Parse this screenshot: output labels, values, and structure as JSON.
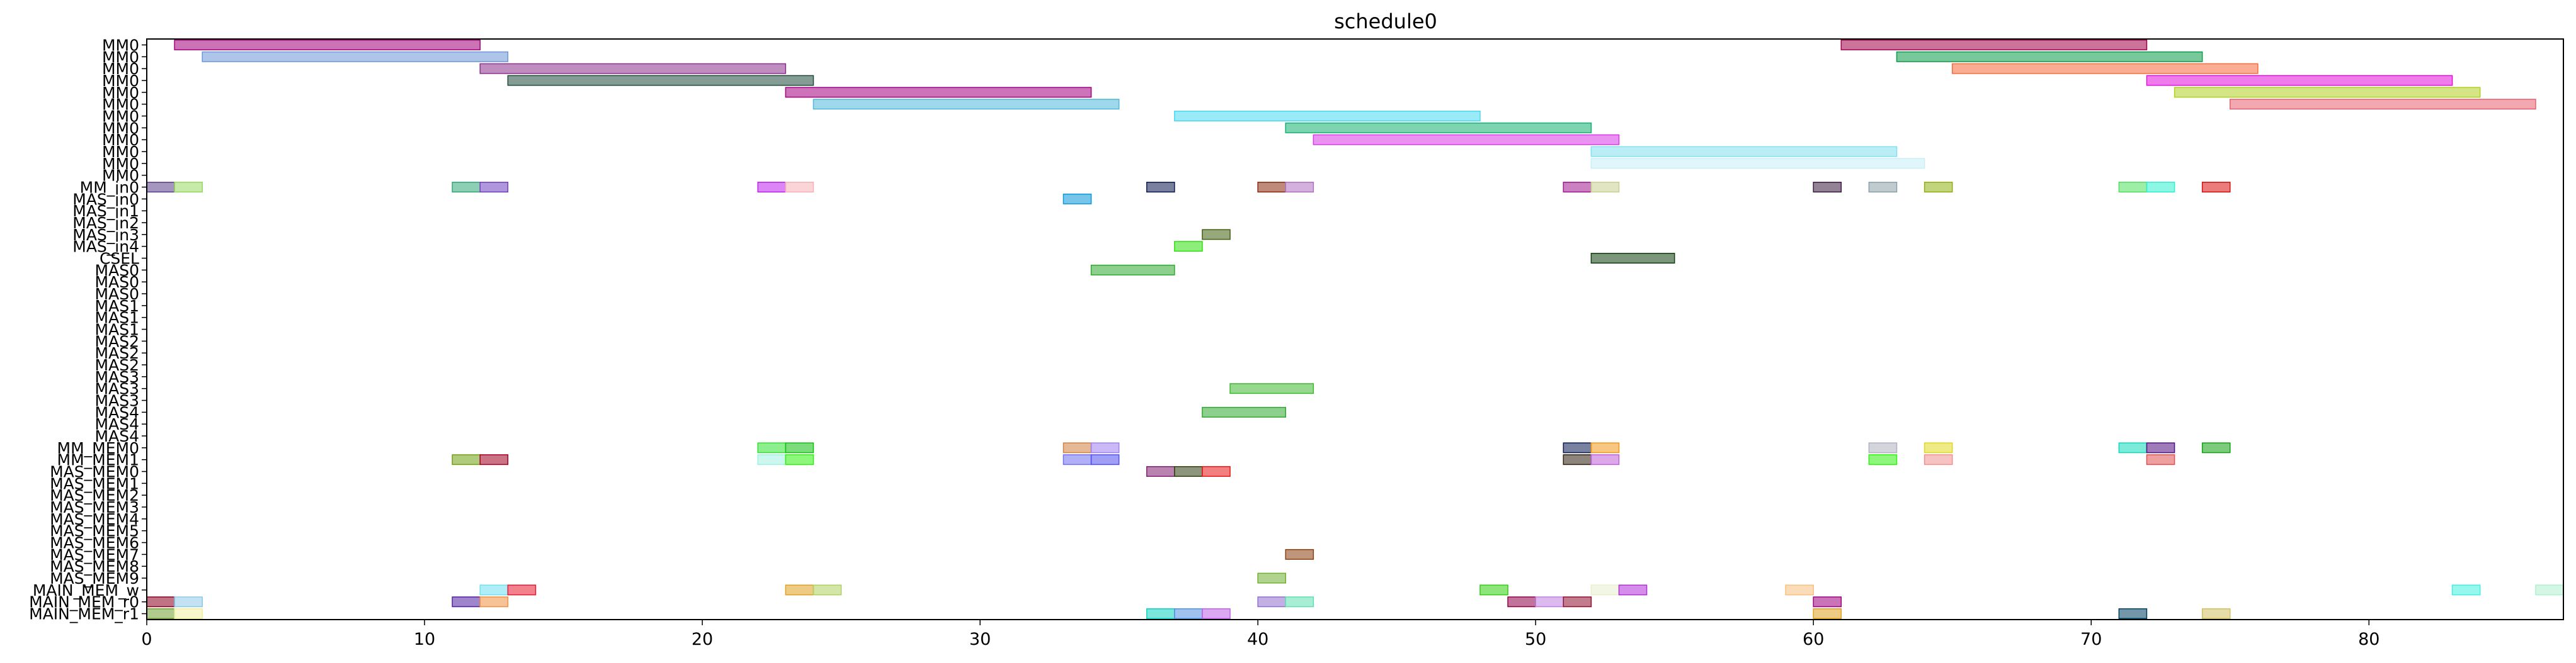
{
  "chart_data": {
    "type": "gantt",
    "title": "schedule0",
    "xlabel": "",
    "ylabel": "",
    "xlim": [
      0,
      87
    ],
    "xticks": [
      0,
      10,
      20,
      30,
      40,
      50,
      60,
      70,
      80
    ],
    "grid": false,
    "lanes": [
      "MM0",
      "MM0",
      "MM0",
      "MM0",
      "MM0",
      "MM0",
      "MM0",
      "MM0",
      "MM0",
      "MM0",
      "MM0",
      "MM0",
      "MM_in0",
      "MAS_in0",
      "MAS_in1",
      "MAS_in2",
      "MAS_in3",
      "MAS_in4",
      "CSEL",
      "MAS0",
      "MAS0",
      "MAS0",
      "MAS1",
      "MAS1",
      "MAS1",
      "MAS2",
      "MAS2",
      "MAS2",
      "MAS3",
      "MAS3",
      "MAS3",
      "MAS4",
      "MAS4",
      "MAS4",
      "MM_MEM0",
      "MM_MEM1",
      "MAS_MEM0",
      "MAS_MEM1",
      "MAS_MEM2",
      "MAS_MEM3",
      "MAS_MEM4",
      "MAS_MEM5",
      "MAS_MEM6",
      "MAS_MEM7",
      "MAS_MEM8",
      "MAS_MEM9",
      "MAIN_MEM_w",
      "MAIN_MEM_r0",
      "MAIN_MEM_r1"
    ],
    "tasks": [
      {
        "lane": 0,
        "start": 1,
        "end": 12,
        "color": "#a3007a"
      },
      {
        "lane": 0,
        "start": 61,
        "end": 72,
        "color": "#a3004a"
      },
      {
        "lane": 1,
        "start": 2,
        "end": 13,
        "color": "#6b95d8"
      },
      {
        "lane": 1,
        "start": 63,
        "end": 74,
        "color": "#0a9a48"
      },
      {
        "lane": 2,
        "start": 12,
        "end": 23,
        "color": "#8a2f8c"
      },
      {
        "lane": 2,
        "start": 65,
        "end": 76,
        "color": "#f86a3a"
      },
      {
        "lane": 3,
        "start": 13,
        "end": 24,
        "color": "#1f4a3a"
      },
      {
        "lane": 3,
        "start": 72,
        "end": 83,
        "color": "#e010d8"
      },
      {
        "lane": 4,
        "start": 23,
        "end": 34,
        "color": "#a3007f"
      },
      {
        "lane": 4,
        "start": 73,
        "end": 84,
        "color": "#b0d020"
      },
      {
        "lane": 5,
        "start": 24,
        "end": 35,
        "color": "#50b8d8"
      },
      {
        "lane": 5,
        "start": 75,
        "end": 86,
        "color": "#e86070"
      },
      {
        "lane": 6,
        "start": 37,
        "end": 48,
        "color": "#48d8f0"
      },
      {
        "lane": 7,
        "start": 41,
        "end": 52,
        "color": "#10b070"
      },
      {
        "lane": 8,
        "start": 42,
        "end": 53,
        "color": "#d838e8"
      },
      {
        "lane": 9,
        "start": 52,
        "end": 63,
        "color": "#80e0f0"
      },
      {
        "lane": 10,
        "start": 52,
        "end": 64,
        "color": "#c8eef6"
      },
      {
        "lane": 12,
        "start": 0,
        "end": 1,
        "color": "#5a3f8a"
      },
      {
        "lane": 12,
        "start": 1,
        "end": 2,
        "color": "#98d860"
      },
      {
        "lane": 12,
        "start": 11,
        "end": 12,
        "color": "#30a878"
      },
      {
        "lane": 12,
        "start": 12,
        "end": 13,
        "color": "#7040c0"
      },
      {
        "lane": 12,
        "start": 22,
        "end": 23,
        "color": "#c020f0"
      },
      {
        "lane": 12,
        "start": 23,
        "end": 24,
        "color": "#f8b0b8"
      },
      {
        "lane": 12,
        "start": 36,
        "end": 37,
        "color": "#0c1a50"
      },
      {
        "lane": 12,
        "start": 40,
        "end": 41,
        "color": "#8a2a10"
      },
      {
        "lane": 12,
        "start": 41,
        "end": 42,
        "color": "#b070c0"
      },
      {
        "lane": 12,
        "start": 51,
        "end": 52,
        "color": "#a01890"
      },
      {
        "lane": 12,
        "start": 52,
        "end": 53,
        "color": "#c8d090"
      },
      {
        "lane": 12,
        "start": 60,
        "end": 61,
        "color": "#3a1a40"
      },
      {
        "lane": 12,
        "start": 62,
        "end": 63,
        "color": "#8aa0a8"
      },
      {
        "lane": 12,
        "start": 64,
        "end": 65,
        "color": "#90b010"
      },
      {
        "lane": 12,
        "start": 71,
        "end": 72,
        "color": "#50e060"
      },
      {
        "lane": 12,
        "start": 72,
        "end": 73,
        "color": "#30f0d0"
      },
      {
        "lane": 12,
        "start": 74,
        "end": 75,
        "color": "#d81010"
      },
      {
        "lane": 13,
        "start": 33,
        "end": 34,
        "color": "#0898d8"
      },
      {
        "lane": 16,
        "start": 38,
        "end": 39,
        "color": "#406010"
      },
      {
        "lane": 17,
        "start": 37,
        "end": 38,
        "color": "#30e010"
      },
      {
        "lane": 18,
        "start": 52,
        "end": 55,
        "color": "#104010"
      },
      {
        "lane": 19,
        "start": 34,
        "end": 37,
        "color": "#30a830"
      },
      {
        "lane": 29,
        "start": 39,
        "end": 42,
        "color": "#40b830"
      },
      {
        "lane": 31,
        "start": 38,
        "end": 41,
        "color": "#30a830"
      },
      {
        "lane": 34,
        "start": 22,
        "end": 23,
        "color": "#30e030"
      },
      {
        "lane": 34,
        "start": 23,
        "end": 24,
        "color": "#10c010"
      },
      {
        "lane": 34,
        "start": 33,
        "end": 34,
        "color": "#d08040"
      },
      {
        "lane": 34,
        "start": 34,
        "end": 35,
        "color": "#a080f0"
      },
      {
        "lane": 34,
        "start": 51,
        "end": 52,
        "color": "#0a1a50"
      },
      {
        "lane": 34,
        "start": 52,
        "end": 53,
        "color": "#f09818"
      },
      {
        "lane": 34,
        "start": 62,
        "end": 63,
        "color": "#b0b0c0"
      },
      {
        "lane": 34,
        "start": 64,
        "end": 65,
        "color": "#e0d820"
      },
      {
        "lane": 34,
        "start": 71,
        "end": 72,
        "color": "#10d8b8"
      },
      {
        "lane": 34,
        "start": 72,
        "end": 73,
        "color": "#501080"
      },
      {
        "lane": 34,
        "start": 74,
        "end": 75,
        "color": "#10a010"
      },
      {
        "lane": 35,
        "start": 11,
        "end": 12,
        "color": "#70a010"
      },
      {
        "lane": 35,
        "start": 12,
        "end": 13,
        "color": "#a00020"
      },
      {
        "lane": 35,
        "start": 22,
        "end": 23,
        "color": "#a0f0e0"
      },
      {
        "lane": 35,
        "start": 23,
        "end": 24,
        "color": "#30f010"
      },
      {
        "lane": 35,
        "start": 33,
        "end": 34,
        "color": "#7070f0"
      },
      {
        "lane": 35,
        "start": 34,
        "end": 35,
        "color": "#5050f0"
      },
      {
        "lane": 35,
        "start": 51,
        "end": 52,
        "color": "#302010"
      },
      {
        "lane": 35,
        "start": 52,
        "end": 53,
        "color": "#c060d8"
      },
      {
        "lane": 35,
        "start": 62,
        "end": 63,
        "color": "#30f010"
      },
      {
        "lane": 35,
        "start": 64,
        "end": 65,
        "color": "#f09090"
      },
      {
        "lane": 35,
        "start": 72,
        "end": 73,
        "color": "#e05050"
      },
      {
        "lane": 36,
        "start": 36,
        "end": 37,
        "color": "#802070"
      },
      {
        "lane": 36,
        "start": 37,
        "end": 38,
        "color": "#304010"
      },
      {
        "lane": 36,
        "start": 38,
        "end": 39,
        "color": "#e81818"
      },
      {
        "lane": 43,
        "start": 41,
        "end": 42,
        "color": "#8a4010"
      },
      {
        "lane": 45,
        "start": 40,
        "end": 41,
        "color": "#70b030"
      },
      {
        "lane": 46,
        "start": 12,
        "end": 13,
        "color": "#70e0f0"
      },
      {
        "lane": 46,
        "start": 13,
        "end": 14,
        "color": "#e81830"
      },
      {
        "lane": 46,
        "start": 23,
        "end": 24,
        "color": "#e0a020"
      },
      {
        "lane": 46,
        "start": 24,
        "end": 25,
        "color": "#b0d060"
      },
      {
        "lane": 46,
        "start": 48,
        "end": 49,
        "color": "#30d010"
      },
      {
        "lane": 46,
        "start": 52,
        "end": 53,
        "color": "#e8f0d0"
      },
      {
        "lane": 46,
        "start": 53,
        "end": 54,
        "color": "#b030d8"
      },
      {
        "lane": 46,
        "start": 59,
        "end": 60,
        "color": "#f8c080"
      },
      {
        "lane": 46,
        "start": 83,
        "end": 84,
        "color": "#40f0e0"
      },
      {
        "lane": 46,
        "start": 86,
        "end": 87,
        "color": "#b0f0d0"
      },
      {
        "lane": 47,
        "start": 0,
        "end": 1,
        "color": "#8a0020"
      },
      {
        "lane": 47,
        "start": 1,
        "end": 2,
        "color": "#90c8e8"
      },
      {
        "lane": 47,
        "start": 11,
        "end": 12,
        "color": "#5020a0"
      },
      {
        "lane": 47,
        "start": 12,
        "end": 13,
        "color": "#f09040"
      },
      {
        "lane": 47,
        "start": 40,
        "end": 41,
        "color": "#9070d0"
      },
      {
        "lane": 47,
        "start": 41,
        "end": 42,
        "color": "#60e0b0"
      },
      {
        "lane": 47,
        "start": 49,
        "end": 50,
        "color": "#900048"
      },
      {
        "lane": 47,
        "start": 50,
        "end": 51,
        "color": "#c080e0"
      },
      {
        "lane": 47,
        "start": 51,
        "end": 52,
        "color": "#901030"
      },
      {
        "lane": 47,
        "start": 60,
        "end": 61,
        "color": "#a00080"
      },
      {
        "lane": 48,
        "start": 0,
        "end": 1,
        "color": "#70a030"
      },
      {
        "lane": 48,
        "start": 1,
        "end": 2,
        "color": "#f0f0a0"
      },
      {
        "lane": 48,
        "start": 36,
        "end": 37,
        "color": "#10d0c0"
      },
      {
        "lane": 48,
        "start": 37,
        "end": 38,
        "color": "#5090e0"
      },
      {
        "lane": 48,
        "start": 38,
        "end": 39,
        "color": "#c060e8"
      },
      {
        "lane": 48,
        "start": 60,
        "end": 61,
        "color": "#e0a020"
      },
      {
        "lane": 48,
        "start": 71,
        "end": 72,
        "color": "#004060"
      },
      {
        "lane": 48,
        "start": 74,
        "end": 75,
        "color": "#d0c060"
      }
    ]
  }
}
